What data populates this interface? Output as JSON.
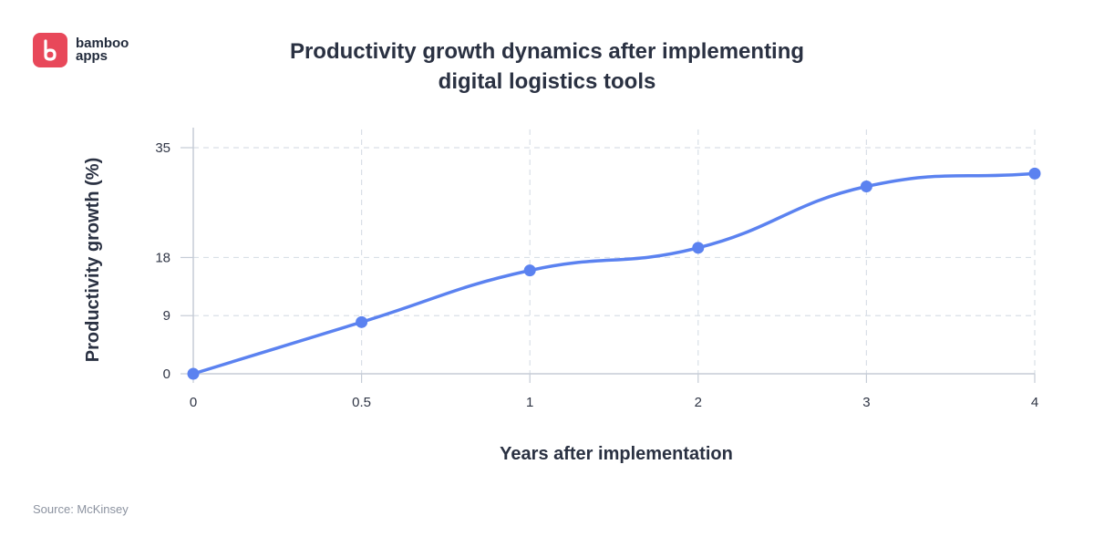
{
  "brand": {
    "name_line1": "bamboo",
    "name_line2": "apps",
    "color": "#e8485a"
  },
  "source": "Source: McKinsey",
  "colors": {
    "line": "#5b82f0",
    "grid": "#d9dfe7",
    "axis": "#c5ccd6",
    "text": "#2a3142"
  },
  "chart_data": {
    "type": "line",
    "title": "Productivity growth dynamics after implementing digital logistics tools",
    "title_lines": [
      "Productivity growth dynamics after implementing",
      "digital logistics tools"
    ],
    "xlabel": "Years after implementation",
    "ylabel": "Productivity growth (%)",
    "x_tick_labels": [
      "0",
      "0.5",
      "1",
      "2",
      "3",
      "4"
    ],
    "y_ticks": [
      0,
      9,
      18,
      35
    ],
    "ylim": [
      0,
      35
    ],
    "grid": true,
    "legend": "none",
    "series": [
      {
        "x": [
          "0",
          "0.5",
          "1",
          "2",
          "3",
          "4"
        ],
        "values": [
          0,
          8,
          16,
          19.5,
          29,
          31
        ]
      }
    ]
  }
}
